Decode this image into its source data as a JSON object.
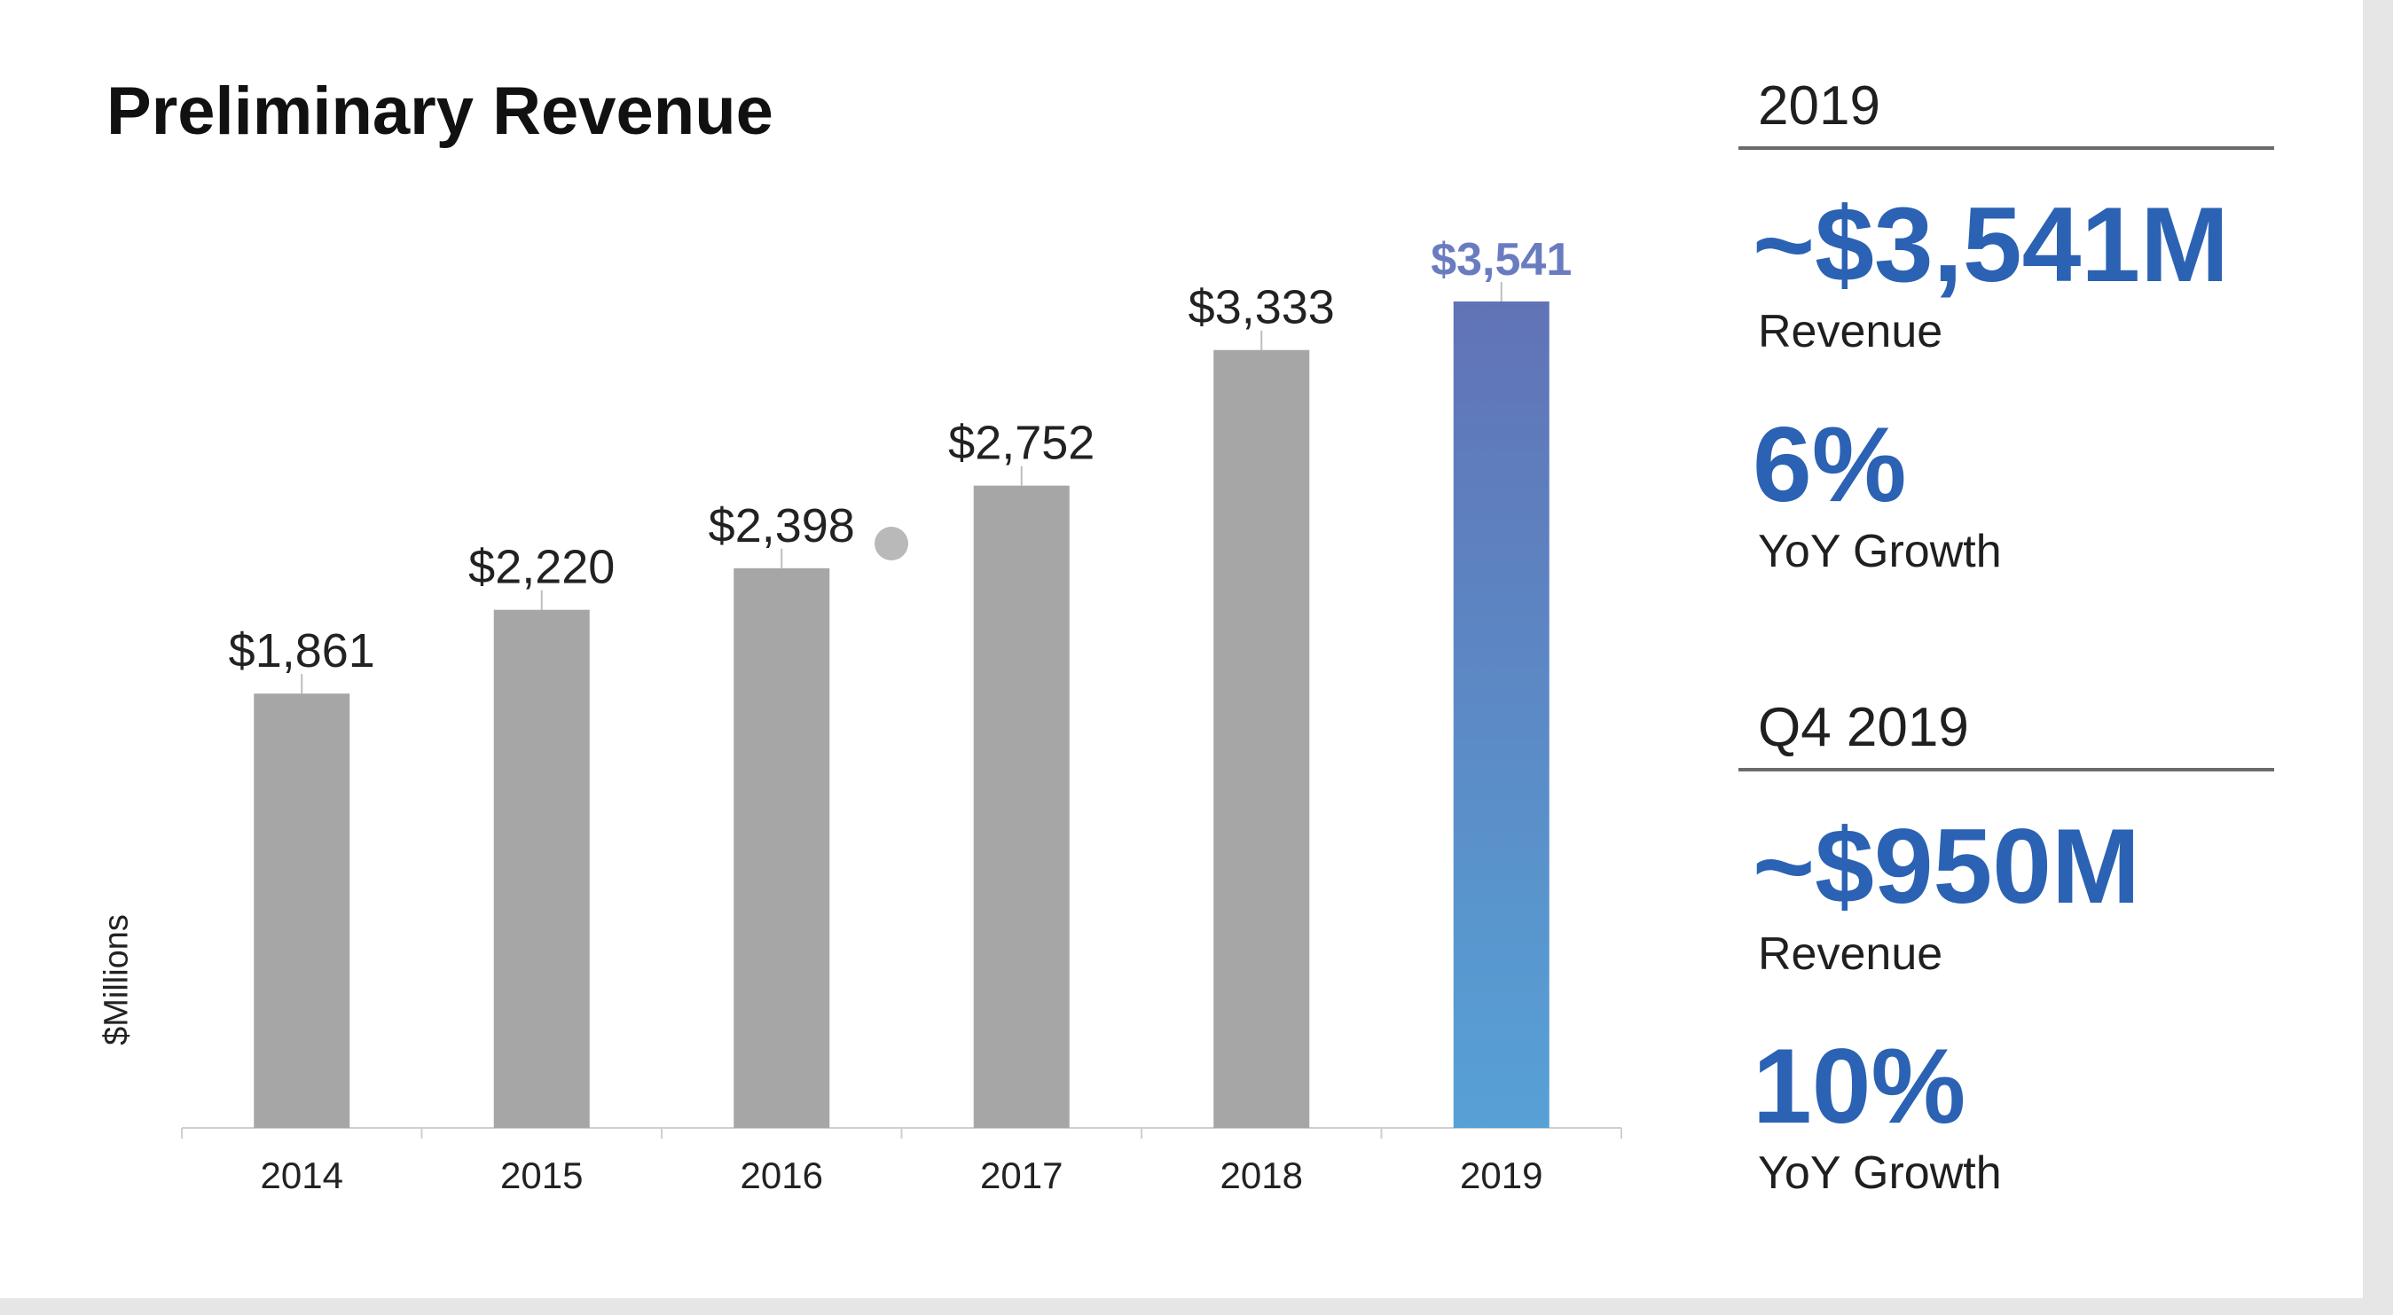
{
  "title": "Preliminary Revenue",
  "chart_data": {
    "type": "bar",
    "categories": [
      "2014",
      "2015",
      "2016",
      "2017",
      "2018",
      "2019"
    ],
    "values": [
      1861,
      2220,
      2398,
      2752,
      3333,
      3541
    ],
    "data_labels": [
      "$1,861",
      "$2,220",
      "$2,398",
      "$2,752",
      "$3,333",
      "$3,541"
    ],
    "title": "Preliminary Revenue",
    "ylabel": "$Millions",
    "xlabel": "",
    "ylim": [
      0,
      3541
    ],
    "grid": false,
    "colors": {
      "bar": "#a6a6a6",
      "highlight_top": "#6173b6",
      "highlight_bottom": "#56a1d6",
      "highlight_label": "#6a7cc0",
      "label": "#222222"
    }
  },
  "stats": [
    {
      "heading": "2019",
      "revenue_value": "~$3,541M",
      "revenue_label": "Revenue",
      "growth_value": "6%",
      "growth_label": "YoY Growth"
    },
    {
      "heading": "Q4 2019",
      "revenue_value": "~$950M",
      "revenue_label": "Revenue",
      "growth_value": "10%",
      "growth_label": "YoY Growth"
    }
  ]
}
